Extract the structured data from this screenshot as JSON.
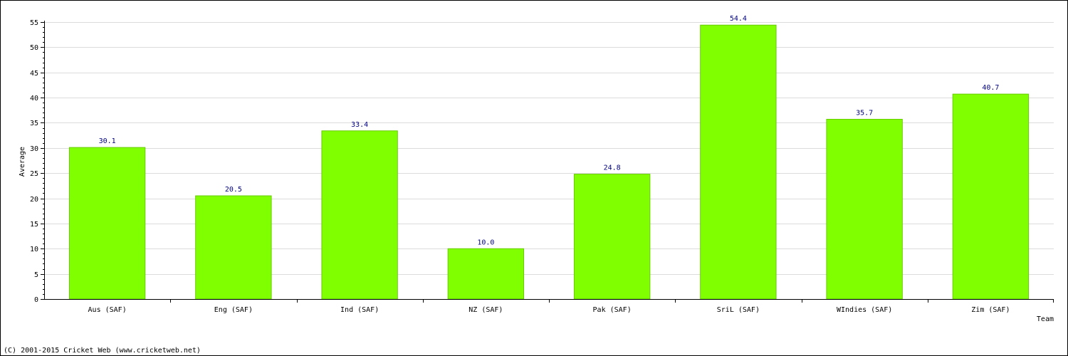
{
  "chart_data": {
    "type": "bar",
    "categories": [
      "Aus (SAF)",
      "Eng (SAF)",
      "Ind (SAF)",
      "NZ (SAF)",
      "Pak (SAF)",
      "SriL (SAF)",
      "WIndies (SAF)",
      "Zim (SAF)"
    ],
    "values": [
      30.1,
      20.5,
      33.4,
      10.0,
      24.8,
      54.4,
      35.7,
      40.7
    ],
    "value_labels": [
      "30.1",
      "20.5",
      "33.4",
      "10.0",
      "24.8",
      "54.4",
      "35.7",
      "40.7"
    ],
    "xlabel": "Team",
    "ylabel": "Average",
    "ylim": [
      0,
      55
    ],
    "yticks": [
      0,
      5,
      10,
      15,
      20,
      25,
      30,
      35,
      40,
      45,
      50,
      55
    ],
    "grid": true,
    "colors": {
      "bar": "#80ff00",
      "bar_edge": "#66cc00",
      "value_label": "#000080",
      "grid": "#dcdcdc"
    }
  },
  "footer": {
    "copyright": "(C) 2001-2015 Cricket Web (www.cricketweb.net)"
  }
}
